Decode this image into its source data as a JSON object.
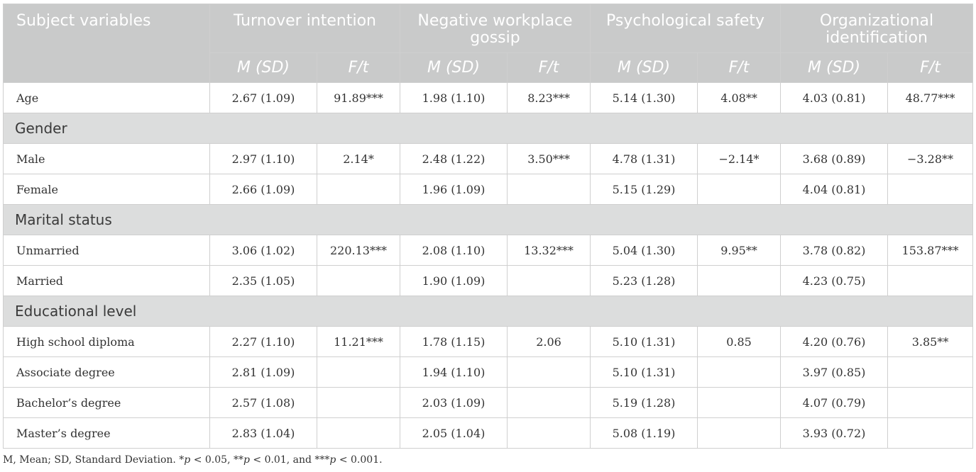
{
  "header": {
    "subject_col": "Subject variables",
    "groups": [
      "Turnover intention",
      "Negative workplace gossip",
      "Psychological safety",
      "Organizational identification"
    ],
    "sub": {
      "m": "M (SD)",
      "f": "F/t"
    }
  },
  "rows": {
    "age": {
      "label": "Age",
      "v": [
        "2.67 (1.09)",
        "91.89***",
        "1.98 (1.10)",
        "8.23***",
        "5.14 (1.30)",
        "4.08**",
        "4.03 (0.81)",
        "48.77***"
      ]
    },
    "gender_section": "Gender",
    "male": {
      "label": "Male",
      "v": [
        "2.97 (1.10)",
        "2.14*",
        "2.48 (1.22)",
        "3.50***",
        "4.78 (1.31)",
        "−2.14*",
        "3.68 (0.89)",
        "−3.28**"
      ]
    },
    "female": {
      "label": "Female",
      "v": [
        "2.66 (1.09)",
        "",
        "1.96 (1.09)",
        "",
        "5.15 (1.29)",
        "",
        "4.04 (0.81)",
        ""
      ]
    },
    "marital_section": "Marital status",
    "unmarried": {
      "label": "Unmarried",
      "v": [
        "3.06 (1.02)",
        "220.13***",
        "2.08 (1.10)",
        "13.32***",
        "5.04 (1.30)",
        "9.95**",
        "3.78 (0.82)",
        "153.87***"
      ]
    },
    "married": {
      "label": "Married",
      "v": [
        "2.35 (1.05)",
        "",
        "1.90 (1.09)",
        "",
        "5.23 (1.28)",
        "",
        "4.23 (0.75)",
        ""
      ]
    },
    "education_section": "Educational level",
    "high_school": {
      "label": "High school diploma",
      "v": [
        "2.27 (1.10)",
        "11.21***",
        "1.78 (1.15)",
        "2.06",
        "5.10 (1.31)",
        "0.85",
        "4.20 (0.76)",
        "3.85**"
      ]
    },
    "associate": {
      "label": "Associate degree",
      "v": [
        "2.81 (1.09)",
        "",
        "1.94 (1.10)",
        "",
        "5.10 (1.31)",
        "",
        "3.97 (0.85)",
        ""
      ]
    },
    "bachelor": {
      "label": "Bachelor’s degree",
      "v": [
        "2.57 (1.08)",
        "",
        "2.03 (1.09)",
        "",
        "5.19 (1.28)",
        "",
        "4.07 (0.79)",
        ""
      ]
    },
    "master": {
      "label": "Master’s degree",
      "v": [
        "2.83 (1.04)",
        "",
        "2.05 (1.04)",
        "",
        "5.08 (1.19)",
        "",
        "3.93 (0.72)",
        ""
      ]
    }
  },
  "footnote": {
    "prefix": "M, Mean; SD, Standard Deviation. *",
    "p": "p",
    "part1": " < 0.05, **",
    "part2": " < 0.01, and ***",
    "part3": " < 0.001."
  }
}
